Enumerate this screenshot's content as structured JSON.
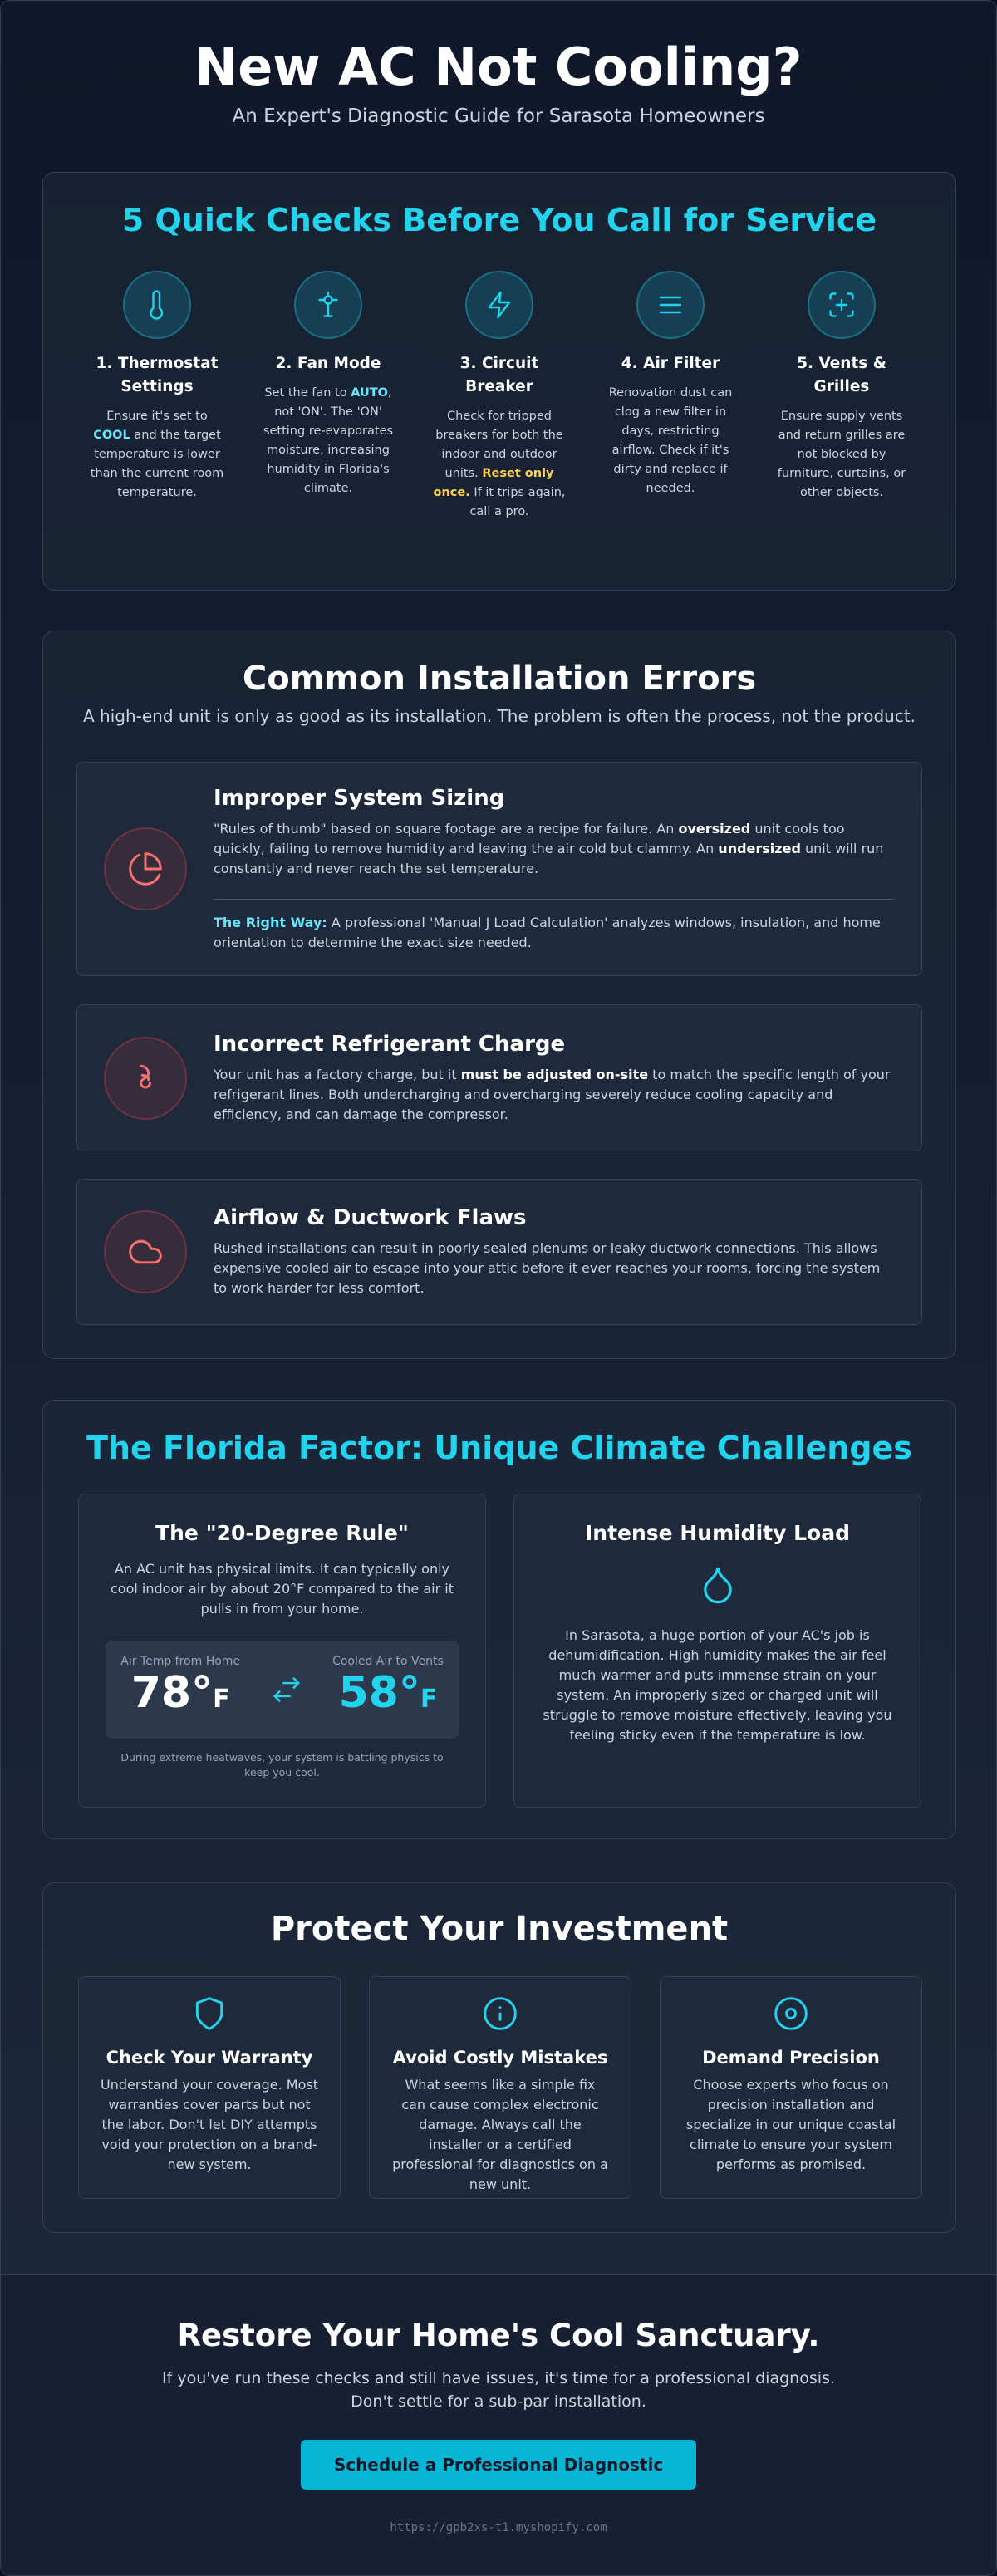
{
  "header": {
    "title": "New AC Not Cooling?",
    "subtitle": "An Expert's Diagnostic Guide for Sarasota Homeowners"
  },
  "quick_checks": {
    "title": "5 Quick Checks Before You Call for Service",
    "items": [
      {
        "title": "1. Thermostat Settings",
        "text": [
          "Ensure it's set to ",
          "COOL",
          " and the target temperature is lower than the current room temperature."
        ]
      },
      {
        "title": "2. Fan Mode",
        "text": [
          "Set the fan to ",
          "AUTO",
          ", not 'ON'. The 'ON' setting re-evaporates moisture, increasing humidity in Florida's climate."
        ]
      },
      {
        "title": "3. Circuit Breaker",
        "text": [
          "Check for tripped breakers for both the indoor and outdoor units. ",
          "Reset only once.",
          " If it trips again, call a pro."
        ]
      },
      {
        "title": "4. Air Filter",
        "text": [
          "Renovation dust can clog a new filter in days, restricting airflow. Check if it's dirty and replace if needed."
        ]
      },
      {
        "title": "5. Vents & Grilles",
        "text": [
          "Ensure supply vents and return grilles are not blocked by furniture, curtains, or other objects."
        ]
      }
    ]
  },
  "installation_errors": {
    "title": "Common Installation Errors",
    "subtitle": "A high-end unit is only as good as its installation. The problem is often the process, not the product.",
    "items": [
      {
        "title": "Improper System Sizing",
        "text": [
          "\"Rules of thumb\" based on square footage are a recipe for failure. An ",
          "oversized",
          " unit cools too quickly, failing to remove humidity and leaving the air cold but clammy. An ",
          "undersized",
          " unit will run constantly and never reach the set temperature."
        ],
        "right_way": [
          "The Right Way:",
          " A professional 'Manual J Load Calculation' analyzes windows, insulation, and home orientation to determine the exact size needed."
        ]
      },
      {
        "title": "Incorrect Refrigerant Charge",
        "text": [
          "Your unit has a factory charge, but it ",
          "must be adjusted on-site",
          " to match the specific length of your refrigerant lines. Both undercharging and overcharging severely reduce cooling capacity and efficiency, and can damage the compressor."
        ]
      },
      {
        "title": "Airflow & Ductwork Flaws",
        "text": [
          "Rushed installations can result in poorly sealed plenums or leaky ductwork connections. This allows expensive cooled air to escape into your attic before it ever reaches your rooms, forcing the system to work harder for less comfort."
        ]
      }
    ]
  },
  "florida_factor": {
    "title": "The Florida Factor: Unique Climate Challenges",
    "cards": [
      {
        "title": "The \"20-Degree Rule\"",
        "text": "An AC unit has physical limits. It can typically only cool indoor air by about 20°F compared to the air it pulls in from your home.",
        "comparison": {
          "home_label": "Air Temp from Home",
          "home_value": "78°",
          "home_unit": "F",
          "vent_label": "Cooled Air to Vents",
          "vent_value": "58°",
          "vent_unit": "F",
          "note": "During extreme heatwaves, your system is battling physics to keep you cool."
        }
      },
      {
        "title": "Intense Humidity Load",
        "text": "In Sarasota, a huge portion of your AC's job is dehumidification. High humidity makes the air feel much warmer and puts immense strain on your system. An improperly sized or charged unit will struggle to remove moisture effectively, leaving you feeling sticky even if the temperature is low."
      }
    ]
  },
  "protect": {
    "title": "Protect Your Investment",
    "items": [
      {
        "title": "Check Your Warranty",
        "text": "Understand your coverage. Most warranties cover parts but not the labor. Don't let DIY attempts void your protection on a brand-new system."
      },
      {
        "title": "Avoid Costly Mistakes",
        "text": "What seems like a simple fix can cause complex electronic damage. Always call the installer or a certified professional for diagnostics on a new unit."
      },
      {
        "title": "Demand Precision",
        "text": "Choose experts who focus on precision installation and specialize in our unique coastal climate to ensure your system performs as promised."
      }
    ]
  },
  "footer": {
    "title": "Restore Your Home's Cool Sanctuary.",
    "text": [
      "If you've run these checks and still have issues, it's time for a professional diagnosis.",
      "Don't settle for a sub-par installation."
    ],
    "button": "Schedule a Professional Diagnostic",
    "url": "https://gpb2xs-t1.myshopify.com"
  }
}
